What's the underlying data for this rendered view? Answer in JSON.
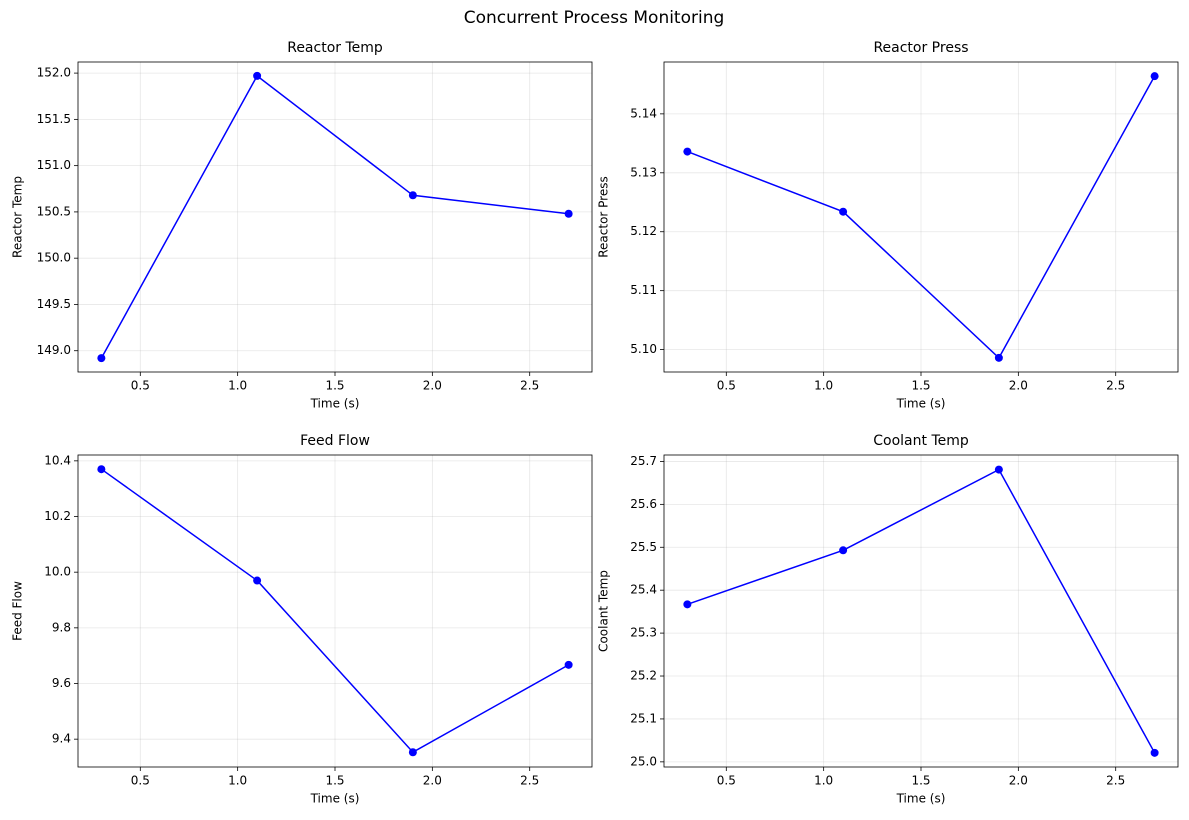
{
  "title": "Concurrent Process Monitoring",
  "chart_data": [
    {
      "type": "line",
      "title": "Reactor Temp",
      "xlabel": "Time (s)",
      "ylabel": "Reactor Temp",
      "x": [
        0.3,
        1.1,
        1.9,
        2.7
      ],
      "values": [
        148.92,
        151.97,
        150.68,
        150.48
      ],
      "color": "#0000ff",
      "marker": "o",
      "grid": true,
      "xlim": [
        0.18,
        2.82
      ],
      "xticks": [
        0.5,
        {
          "value": 1,
          "label": "1.0"
        },
        1.5,
        {
          "value": 2,
          "label": "2.0"
        },
        2.5
      ],
      "ylim": [
        148.77,
        152.12
      ],
      "yticks": [
        {
          "value": 149,
          "label": "149.0"
        },
        149.5,
        {
          "value": 150,
          "label": "150.0"
        },
        150.5,
        {
          "value": 151,
          "label": "151.0"
        },
        151.5,
        {
          "value": 152,
          "label": "152.0"
        }
      ]
    },
    {
      "type": "line",
      "title": "Reactor Press",
      "xlabel": "Time (s)",
      "ylabel": "Reactor Press",
      "x": [
        0.3,
        1.1,
        1.9,
        2.7
      ],
      "values": [
        5.1336,
        5.1234,
        5.0986,
        5.1464
      ],
      "color": "#0000ff",
      "marker": "o",
      "grid": true,
      "xlim": [
        0.18,
        2.82
      ],
      "xticks": [
        0.5,
        {
          "value": 1,
          "label": "1.0"
        },
        1.5,
        {
          "value": 2,
          "label": "2.0"
        },
        2.5
      ],
      "ylim": [
        5.0962,
        5.1488
      ],
      "yticks": [
        {
          "value": 5.1,
          "label": "5.10"
        },
        5.11,
        5.12,
        5.13,
        5.14
      ]
    },
    {
      "type": "line",
      "title": "Feed Flow",
      "xlabel": "Time (s)",
      "ylabel": "Feed Flow",
      "x": [
        0.3,
        1.1,
        1.9,
        2.7
      ],
      "values": [
        10.37,
        9.97,
        9.353,
        9.667
      ],
      "color": "#0000ff",
      "marker": "o",
      "grid": true,
      "xlim": [
        0.18,
        2.82
      ],
      "xticks": [
        0.5,
        {
          "value": 1,
          "label": "1.0"
        },
        1.5,
        {
          "value": 2,
          "label": "2.0"
        },
        2.5
      ],
      "ylim": [
        9.3,
        10.421
      ],
      "yticks": [
        9.4,
        9.6,
        9.8,
        {
          "value": 10,
          "label": "10.0"
        },
        10.2,
        10.4
      ]
    },
    {
      "type": "line",
      "title": "Coolant Temp",
      "xlabel": "Time (s)",
      "ylabel": "Coolant Temp",
      "x": [
        0.3,
        1.1,
        1.9,
        2.7
      ],
      "values": [
        25.367,
        25.493,
        25.681,
        25.021
      ],
      "color": "#0000ff",
      "marker": "o",
      "grid": true,
      "xlim": [
        0.18,
        2.82
      ],
      "xticks": [
        0.5,
        {
          "value": 1,
          "label": "1.0"
        },
        1.5,
        {
          "value": 2,
          "label": "2.0"
        },
        2.5
      ],
      "ylim": [
        24.988,
        25.715
      ],
      "yticks": [
        {
          "value": 25,
          "label": "25.0"
        },
        25.1,
        25.2,
        25.3,
        25.4,
        25.5,
        25.6,
        25.7
      ]
    }
  ]
}
